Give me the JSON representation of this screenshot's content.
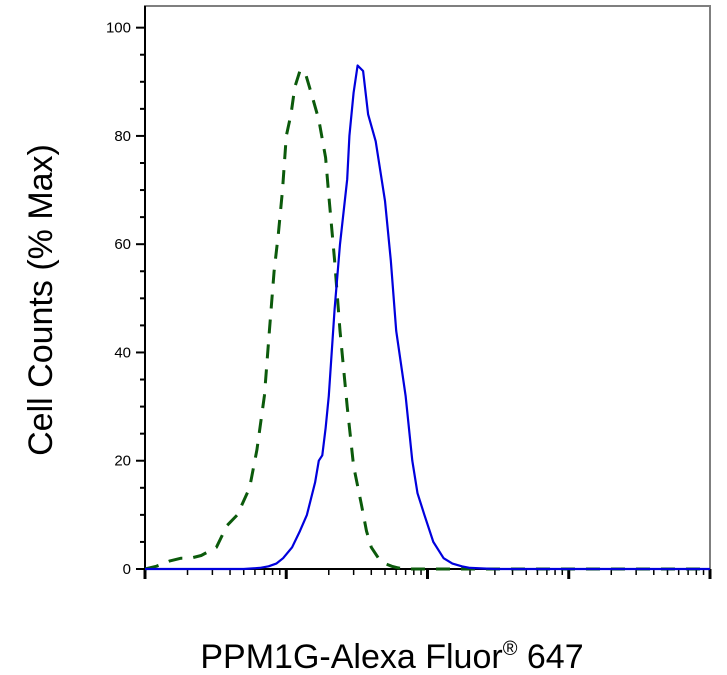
{
  "chart_data": {
    "type": "line",
    "title": "",
    "xlabel": "PPM1G-Alexa Fluor",
    "xlabel_superscript": "®",
    "xlabel_suffix": " 647",
    "ylabel": "Cell Counts (% Max)",
    "x_scale": "log",
    "xlim": [
      1,
      10000
    ],
    "ylim": [
      0,
      104
    ],
    "y_ticks": [
      0,
      20,
      40,
      60,
      80,
      100
    ],
    "grid": false,
    "legend": "none",
    "series": [
      {
        "style": "dashed",
        "color": "#0b5a0b",
        "x": [
          1,
          1.2,
          1.35,
          1.5,
          1.8,
          2.1,
          2.5,
          3.2,
          3.8,
          4.5,
          5.5,
          6.2,
          7.0,
          7.6,
          8.2,
          8.8,
          9.4,
          10.0,
          10.8,
          11.5,
          12.5,
          13.5,
          15,
          17,
          19,
          20,
          22,
          24,
          27,
          30,
          34,
          37,
          40,
          45,
          50,
          56,
          62,
          70,
          80,
          90,
          100,
          200,
          1000,
          10000
        ],
        "y": [
          0,
          0.5,
          1,
          1.5,
          2,
          2,
          2.5,
          4,
          8,
          10,
          15,
          22,
          32,
          44,
          55,
          62,
          70,
          80,
          84,
          89,
          92,
          92,
          88,
          83,
          76,
          69,
          57,
          44,
          30,
          19,
          12,
          7,
          4,
          2,
          1,
          0.5,
          0.2,
          0,
          0,
          0,
          0,
          0,
          0,
          0
        ]
      },
      {
        "style": "solid",
        "color": "#0000dd",
        "x": [
          1,
          5,
          6.5,
          7.5,
          8.5,
          9.5,
          11,
          12.5,
          14,
          16,
          17,
          18,
          19,
          20,
          22,
          24,
          27,
          28,
          30,
          32,
          35,
          38,
          43,
          50,
          55,
          60,
          70,
          78,
          85,
          95,
          110,
          130,
          150,
          175,
          200,
          250,
          300,
          400,
          600,
          1000,
          10000
        ],
        "y": [
          0,
          0,
          0.2,
          0.5,
          1,
          2,
          4,
          7,
          10,
          16,
          20,
          21,
          26,
          32,
          48,
          60,
          72,
          80,
          88,
          93,
          92,
          84,
          79,
          68,
          57,
          44,
          32,
          20,
          14,
          10,
          5,
          2,
          1,
          0.5,
          0.2,
          0.1,
          0,
          0,
          0,
          0,
          0
        ]
      }
    ]
  }
}
